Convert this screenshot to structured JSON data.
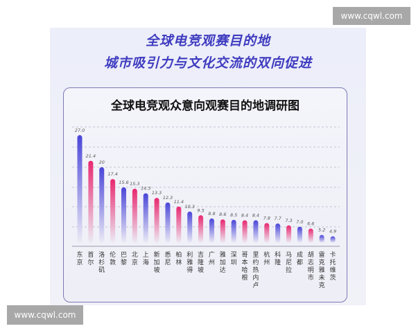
{
  "watermark": "www.cqwl.com",
  "headline": [
    "全球电竞观赛目的地",
    "城市吸引力与文化交流的双向促进"
  ],
  "colors": {
    "blue": "#4a46d8",
    "pink": "#e8286f",
    "title": "#3f3cc0"
  },
  "chart_data": {
    "type": "bar",
    "title": "全球电竞观众意向观赛目的地调研图",
    "categories": [
      "东京",
      "首尔",
      "洛杉矶",
      "伦敦",
      "巴黎",
      "北京",
      "上海",
      "新加坡",
      "悉尼",
      "柏林",
      "利雅得",
      "吉隆坡",
      "广州",
      "雅加达",
      "深圳",
      "哥本哈根",
      "里约热内卢",
      "杭州",
      "科隆",
      "马尼拉",
      "成都",
      "胡志明市",
      "雷克雅未克",
      "卡托维茨"
    ],
    "values": [
      27.0,
      21.4,
      20,
      17.4,
      15.6,
      15.3,
      14.3,
      13.3,
      12.3,
      11.4,
      10.3,
      9.5,
      8.8,
      8.6,
      8.5,
      8.4,
      8.4,
      7.8,
      7.7,
      7.3,
      7.0,
      6.6,
      5.2,
      4.9
    ],
    "value_labels": [
      "27.0",
      "21.4",
      "20",
      "17.4",
      "15.6",
      "15.3",
      "14.3",
      "13.3",
      "12.3",
      "11.4",
      "10.3",
      "9.5",
      "8.8",
      "8.6",
      "8.5",
      "8.4",
      "8.4",
      "7.8",
      "7.7",
      "7.3",
      "7.0",
      "6.6",
      "5.2",
      "4.9"
    ],
    "bar_colors": [
      "blue",
      "pink",
      "blue",
      "pink",
      "blue",
      "pink",
      "blue",
      "pink",
      "blue",
      "pink",
      "blue",
      "pink",
      "blue",
      "pink",
      "blue",
      "pink",
      "blue",
      "pink",
      "blue",
      "pink",
      "blue",
      "pink",
      "blue",
      "blue"
    ],
    "grid": "dashed horizontal",
    "legend": "none"
  }
}
